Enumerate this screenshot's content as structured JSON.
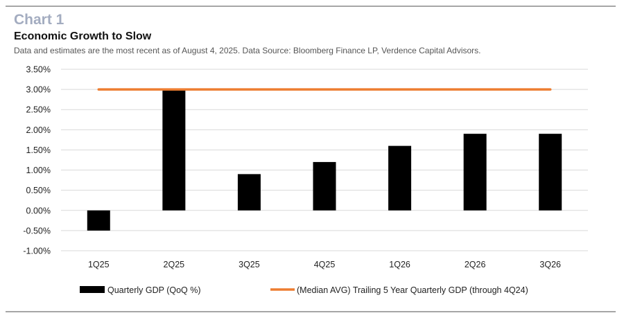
{
  "header": {
    "heading": "Chart 1",
    "title": "Economic Growth to Slow",
    "subtitle": "Data and estimates are the most recent as of August 4, 2025. Data Source: Bloomberg Finance LP, Verdence Capital Advisors."
  },
  "chart_data": {
    "type": "bar",
    "categories": [
      "1Q25",
      "2Q25",
      "3Q25",
      "4Q25",
      "1Q26",
      "2Q26",
      "3Q26"
    ],
    "series": [
      {
        "name": "Quarterly GDP (QoQ %)",
        "type": "bar",
        "color": "#000000",
        "values": [
          -0.5,
          3.0,
          0.9,
          1.2,
          1.6,
          1.9,
          1.9
        ]
      },
      {
        "name": "(Median AVG) Trailing 5 Year Quarterly GDP (through 4Q24)",
        "type": "line",
        "color": "#ed7d31",
        "values": [
          3.0,
          3.0,
          3.0,
          3.0,
          3.0,
          3.0,
          3.0
        ]
      }
    ],
    "ylim": [
      -1.0,
      3.5
    ],
    "yticks": [
      3.5,
      3.0,
      2.5,
      2.0,
      1.5,
      1.0,
      0.5,
      0.0,
      -0.5,
      -1.0
    ],
    "ytick_labels": [
      "3.50%",
      "3.00%",
      "2.50%",
      "2.00%",
      "1.50%",
      "1.00%",
      "0.50%",
      "0.00%",
      "-0.50%",
      "-1.00%"
    ],
    "grid": true,
    "legend": "bottom"
  }
}
